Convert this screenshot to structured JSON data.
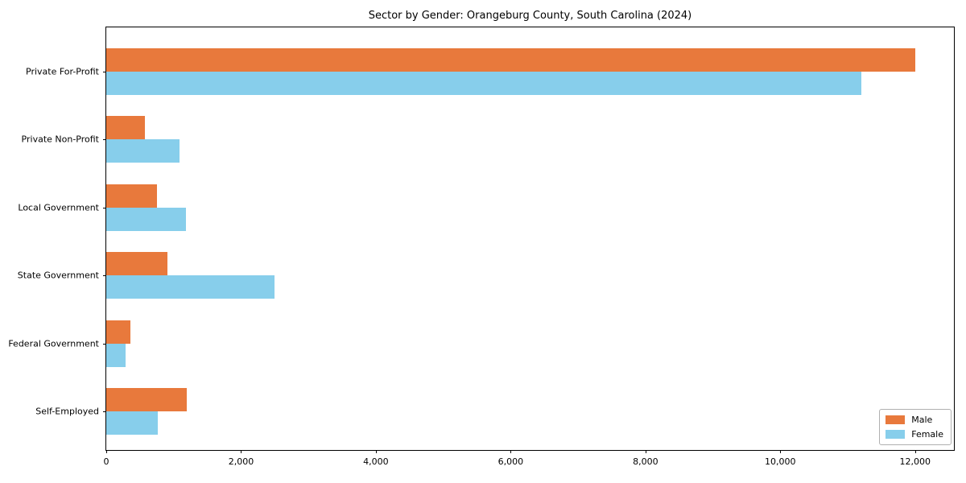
{
  "chart_data": {
    "type": "bar",
    "orientation": "horizontal",
    "title": "Sector by Gender: Orangeburg County, South Carolina (2024)",
    "categories": [
      "Private For-Profit",
      "Private Non-Profit",
      "Local Government",
      "State Government",
      "Federal Government",
      "Self-Employed"
    ],
    "series": [
      {
        "name": "Male",
        "color": "#E8793C",
        "values": [
          12000,
          570,
          750,
          910,
          360,
          1200
        ]
      },
      {
        "name": "Female",
        "color": "#87CEEB",
        "values": [
          11200,
          1090,
          1180,
          2500,
          290,
          770
        ]
      }
    ],
    "xlim": [
      0,
      12600
    ],
    "x_ticks": [
      0,
      2000,
      4000,
      6000,
      8000,
      10000,
      12000
    ],
    "x_tick_labels": [
      "0",
      "2,000",
      "4,000",
      "6,000",
      "8,000",
      "10,000",
      "12,000"
    ],
    "grid": false,
    "legend_position": "lower right"
  },
  "colors": {
    "axis": "#000000",
    "background": "#ffffff"
  }
}
